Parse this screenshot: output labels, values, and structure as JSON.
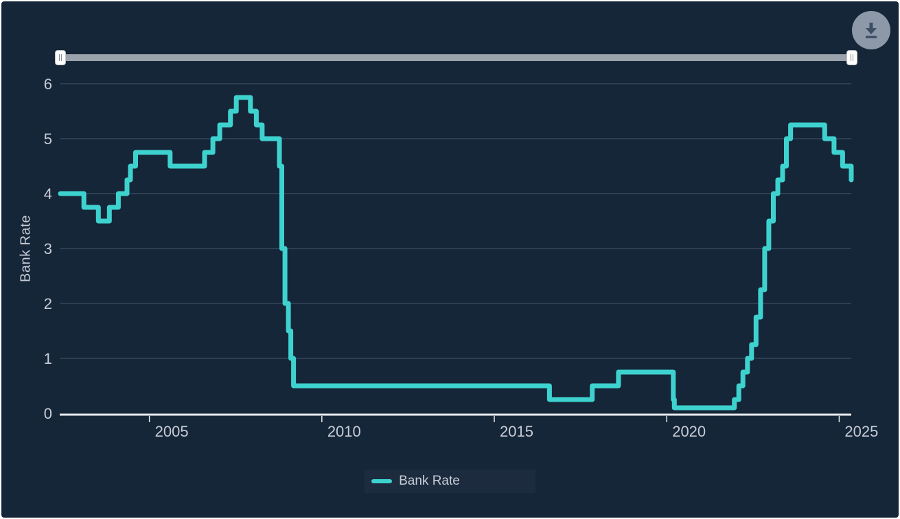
{
  "toolbar": {
    "download_button": {
      "icon": "download-icon",
      "circle_color": "#8d99a8",
      "icon_color": "#3c4f66"
    }
  },
  "navigator": {
    "track_color": "#9aa2ac",
    "handle_color": "#ffffff",
    "range_start_position": "far-left",
    "range_end_position": "far-right"
  },
  "legend": {
    "label": "Bank Rate",
    "swatch_color": "#3ed2cf"
  },
  "colors": {
    "background": "#152638",
    "line": "#3ed2cf",
    "grid": "#3e4e63",
    "axis": "#e9ebee",
    "tick_text": "#c7ccd7"
  },
  "chart_data": {
    "type": "line",
    "step": true,
    "title": "",
    "xlabel": "",
    "ylabel": "Bank Rate",
    "xlim": [
      2002.42,
      2025.35
    ],
    "ylim": [
      0,
      6
    ],
    "xticks": [
      2005,
      2010,
      2015,
      2020,
      2025
    ],
    "yticks": [
      0,
      1,
      2,
      3,
      4,
      5,
      6
    ],
    "grid": true,
    "legend_position": "bottom-center",
    "series": [
      {
        "name": "Bank Rate",
        "color": "#3ed2cf",
        "points": [
          [
            2002.42,
            4.0
          ],
          [
            2003.1,
            3.75
          ],
          [
            2003.52,
            3.5
          ],
          [
            2003.84,
            3.75
          ],
          [
            2004.1,
            4.0
          ],
          [
            2004.35,
            4.25
          ],
          [
            2004.45,
            4.5
          ],
          [
            2004.6,
            4.75
          ],
          [
            2005.6,
            4.5
          ],
          [
            2006.6,
            4.75
          ],
          [
            2006.84,
            5.0
          ],
          [
            2007.04,
            5.25
          ],
          [
            2007.35,
            5.5
          ],
          [
            2007.52,
            5.75
          ],
          [
            2007.93,
            5.5
          ],
          [
            2008.1,
            5.25
          ],
          [
            2008.27,
            5.0
          ],
          [
            2008.77,
            4.5
          ],
          [
            2008.84,
            3.0
          ],
          [
            2008.93,
            2.0
          ],
          [
            2009.03,
            1.5
          ],
          [
            2009.1,
            1.0
          ],
          [
            2009.18,
            0.5
          ],
          [
            2016.6,
            0.25
          ],
          [
            2017.84,
            0.5
          ],
          [
            2018.6,
            0.75
          ],
          [
            2020.19,
            0.25
          ],
          [
            2020.22,
            0.1
          ],
          [
            2021.96,
            0.25
          ],
          [
            2022.09,
            0.5
          ],
          [
            2022.21,
            0.75
          ],
          [
            2022.34,
            1.0
          ],
          [
            2022.46,
            1.25
          ],
          [
            2022.59,
            1.75
          ],
          [
            2022.72,
            2.25
          ],
          [
            2022.84,
            3.0
          ],
          [
            2022.96,
            3.5
          ],
          [
            2023.09,
            4.0
          ],
          [
            2023.22,
            4.25
          ],
          [
            2023.36,
            4.5
          ],
          [
            2023.47,
            5.0
          ],
          [
            2023.59,
            5.25
          ],
          [
            2024.58,
            5.0
          ],
          [
            2024.85,
            4.75
          ],
          [
            2025.1,
            4.5
          ],
          [
            2025.35,
            4.25
          ]
        ]
      }
    ]
  }
}
